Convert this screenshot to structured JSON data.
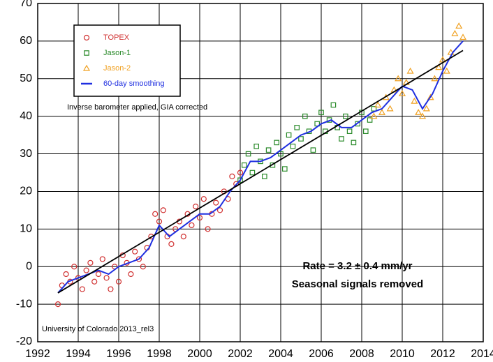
{
  "chart_data": {
    "type": "scatter",
    "xlim": [
      1992,
      2014
    ],
    "ylim": [
      -20,
      70
    ],
    "xticks": [
      1992,
      1994,
      1996,
      1998,
      2000,
      2002,
      2004,
      2006,
      2008,
      2010,
      2012,
      2014
    ],
    "yticks": [
      -20,
      -10,
      0,
      10,
      20,
      30,
      40,
      50,
      60,
      70
    ],
    "grid": true,
    "legend": "upper left",
    "annotations": [
      "Inverse barometer applied, GIA corrected",
      "Rate = 3.2 ± 0.4 mm/yr",
      "Seasonal signals removed",
      "University of Colorado 2013_rel3"
    ],
    "series": [
      {
        "name": "TOPEX",
        "color": "#d03030",
        "marker": "circle",
        "x": [
          1993.0,
          1993.2,
          1993.4,
          1993.6,
          1993.8,
          1994.0,
          1994.2,
          1994.4,
          1994.6,
          1994.8,
          1995.0,
          1995.2,
          1995.4,
          1995.6,
          1995.8,
          1996.0,
          1996.2,
          1996.4,
          1996.6,
          1996.8,
          1997.0,
          1997.2,
          1997.4,
          1997.6,
          1997.8,
          1998.0,
          1998.2,
          1998.4,
          1998.6,
          1998.8,
          1999.0,
          1999.2,
          1999.4,
          1999.6,
          1999.8,
          2000.0,
          2000.2,
          2000.4,
          2000.6,
          2000.8,
          2001.0,
          2001.2,
          2001.4,
          2001.6,
          2001.8,
          2002.0
        ],
        "values": [
          -10,
          -5,
          -2,
          -4,
          0,
          -3,
          -6,
          -1,
          1,
          -4,
          -2,
          2,
          -3,
          -6,
          0,
          -4,
          3,
          1,
          -2,
          4,
          2,
          0,
          5,
          8,
          14,
          12,
          15,
          8,
          6,
          10,
          12,
          8,
          14,
          11,
          16,
          13,
          18,
          10,
          14,
          17,
          15,
          20,
          18,
          24,
          22,
          25
        ]
      },
      {
        "name": "Jason-1",
        "color": "#2a8a2a",
        "marker": "square",
        "x": [
          2002.0,
          2002.2,
          2002.4,
          2002.6,
          2002.8,
          2003.0,
          2003.2,
          2003.4,
          2003.6,
          2003.8,
          2004.0,
          2004.2,
          2004.4,
          2004.6,
          2004.8,
          2005.0,
          2005.2,
          2005.4,
          2005.6,
          2005.8,
          2006.0,
          2006.2,
          2006.4,
          2006.6,
          2006.8,
          2007.0,
          2007.2,
          2007.4,
          2007.6,
          2007.8,
          2008.0,
          2008.2,
          2008.4,
          2008.6
        ],
        "values": [
          23,
          27,
          30,
          25,
          32,
          28,
          24,
          31,
          27,
          33,
          30,
          26,
          35,
          32,
          37,
          34,
          40,
          36,
          31,
          38,
          41,
          36,
          39,
          43,
          37,
          34,
          40,
          36,
          33,
          38,
          41,
          36,
          39,
          42
        ]
      },
      {
        "name": "Jason-2",
        "color": "#f0a020",
        "marker": "triangle",
        "x": [
          2008.6,
          2008.8,
          2009.0,
          2009.2,
          2009.4,
          2009.6,
          2009.8,
          2010.0,
          2010.2,
          2010.4,
          2010.6,
          2010.8,
          2011.0,
          2011.2,
          2011.4,
          2011.6,
          2011.8,
          2012.0,
          2012.2,
          2012.4,
          2012.6,
          2012.8,
          2013.0
        ],
        "values": [
          40,
          43,
          41,
          45,
          42,
          47,
          50,
          46,
          49,
          52,
          44,
          41,
          40,
          42,
          45,
          50,
          53,
          55,
          52,
          57,
          62,
          64,
          61
        ]
      },
      {
        "name": "60-day smoothing",
        "color": "#1f2fe0",
        "marker": "line",
        "x": [
          1993,
          1993.5,
          1994,
          1994.5,
          1995,
          1995.5,
          1996,
          1996.5,
          1997,
          1997.5,
          1998,
          1998.5,
          1999,
          1999.5,
          2000,
          2000.5,
          2001,
          2001.5,
          2002,
          2002.5,
          2003,
          2003.5,
          2004,
          2004.5,
          2005,
          2005.5,
          2006,
          2006.5,
          2007,
          2007.5,
          2008,
          2008.5,
          2009,
          2009.5,
          2010,
          2010.5,
          2011,
          2011.5,
          2012,
          2012.5,
          2013
        ],
        "values": [
          -7,
          -4,
          -3,
          -2,
          -1,
          -2,
          0,
          1,
          2,
          5,
          11,
          8,
          10,
          12,
          14,
          14,
          16,
          20,
          23,
          28,
          28,
          29,
          31,
          33,
          35,
          36,
          38,
          39,
          37,
          37,
          39,
          41,
          42,
          45,
          48,
          47,
          42,
          46,
          52,
          57,
          60
        ]
      }
    ],
    "trend_line": {
      "color": "#000000",
      "x": [
        1993,
        2013
      ],
      "values": [
        -7,
        57.5
      ]
    }
  }
}
